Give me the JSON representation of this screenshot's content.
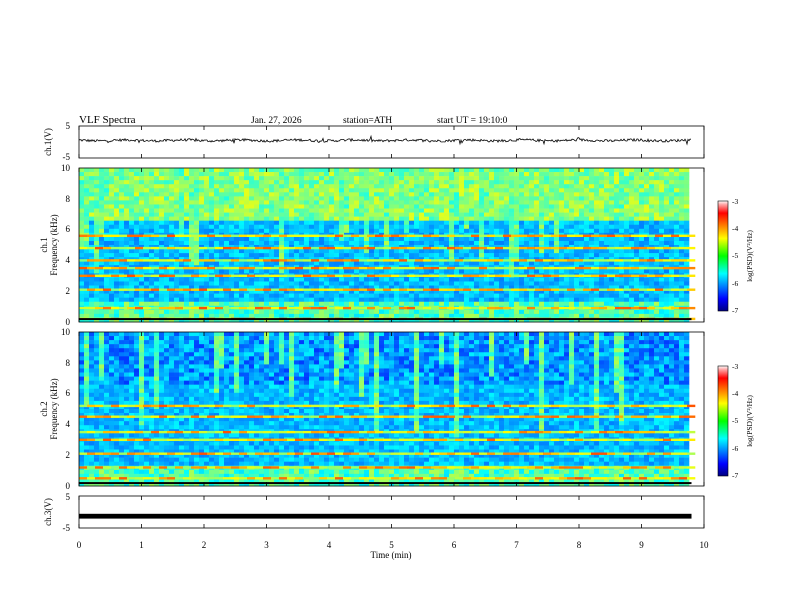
{
  "header": {
    "title": "VLF Spectra",
    "date": "Jan. 27, 2026",
    "station": "station=ATH",
    "start": "start UT =  19:10:0"
  },
  "chart_data": [
    {
      "type": "line",
      "panel": "ch1-waveform",
      "ylabel": "ch.1(V)",
      "yticks": [
        "5",
        "-5"
      ],
      "ylim": [
        -5,
        5
      ],
      "xlim": [
        0,
        10
      ],
      "data_end_min": 9.8,
      "description_of_trace": "noisy signal around +0.5 V with small excursions",
      "series": [
        {
          "values_summary": {
            "mean": 0.5,
            "amplitude": 0.8
          }
        }
      ]
    },
    {
      "type": "heatmap",
      "panel": "ch1-spectrogram",
      "ylabel": "ch.1\nFrequency (kHz)",
      "ylabel_top": "ch.1",
      "ylabel_bottom": "Frequency (kHz)",
      "yticks": [
        "0",
        "2",
        "4",
        "6",
        "8",
        "10"
      ],
      "ylim": [
        0,
        10
      ],
      "xlim": [
        0,
        10
      ],
      "colorbar": {
        "label": "log(PSD)(V²/Hz)",
        "ticks": [
          "-3",
          "-4",
          "-5",
          "-6",
          "-7"
        ],
        "range": [
          -7,
          -3
        ]
      },
      "bands_khz": [
        0.2,
        0.9,
        2.1,
        3.0,
        3.5,
        4.0,
        4.8,
        5.6
      ]
    },
    {
      "type": "heatmap",
      "panel": "ch2-spectrogram",
      "ylabel_top": "ch.2",
      "ylabel_bottom": "Frequency (kHz)",
      "yticks": [
        "0",
        "2",
        "4",
        "6",
        "8",
        "10"
      ],
      "ylim": [
        0,
        10
      ],
      "xlim": [
        0,
        10
      ],
      "colorbar": {
        "label": "log(PSD)(V²/Hz)",
        "ticks": [
          "-3",
          "-4",
          "-5",
          "-6",
          "-7"
        ],
        "range": [
          -7,
          -3
        ]
      },
      "bands_khz": [
        0.5,
        1.2,
        2.1,
        3.0,
        3.5,
        4.5,
        5.2
      ]
    },
    {
      "type": "line",
      "panel": "ch3-waveform",
      "ylabel": "ch.3(V)",
      "yticks": [
        "5",
        "-5"
      ],
      "ylim": [
        -5,
        5
      ],
      "xlim": [
        0,
        10
      ],
      "data_end_min": 9.8,
      "series": [
        {
          "values_summary": {
            "mean": -1.3,
            "amplitude": 0.15
          }
        }
      ]
    }
  ],
  "xaxis": {
    "label": "Time (min)",
    "ticks": [
      "0",
      "1",
      "2",
      "3",
      "4",
      "5",
      "6",
      "7",
      "8",
      "9",
      "10"
    ]
  },
  "colors": {
    "jet_low": "#000080",
    "jet_high": "#800000"
  }
}
